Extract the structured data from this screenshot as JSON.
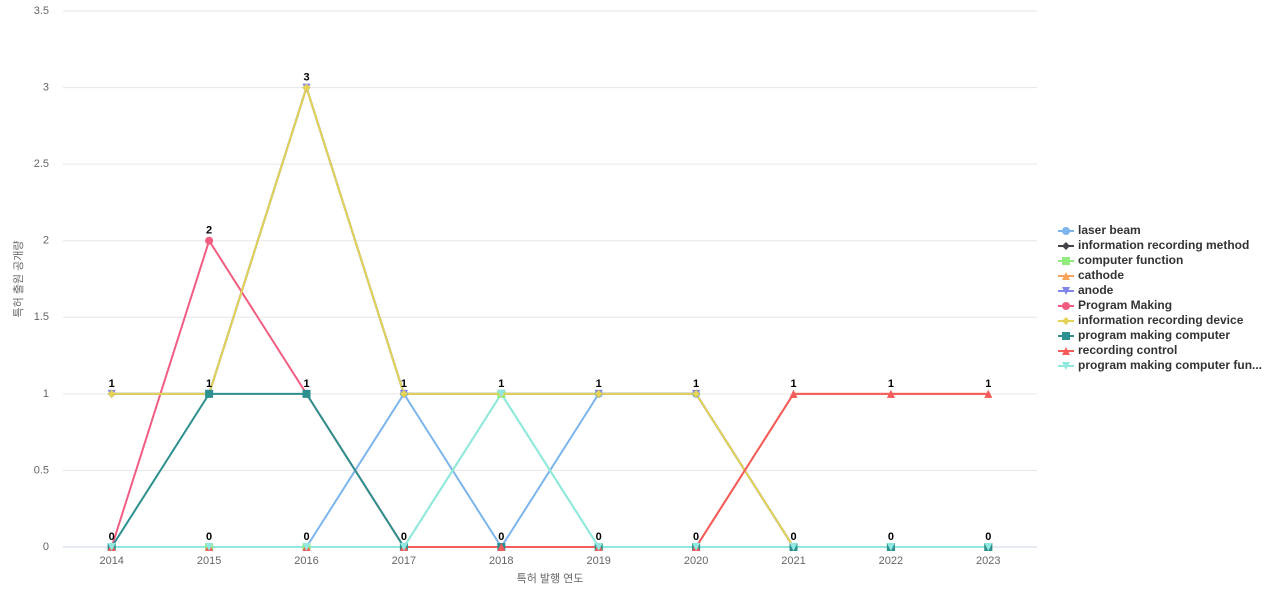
{
  "chart_data": {
    "type": "line",
    "x_label": "특허 발행 연도",
    "y_label": "특허 출원 공개량",
    "categories": [
      "2014",
      "2015",
      "2016",
      "2017",
      "2018",
      "2019",
      "2020",
      "2021",
      "2022",
      "2023"
    ],
    "ylim": [
      0,
      3.5
    ],
    "yticks": [
      0,
      0.5,
      1,
      1.5,
      2,
      2.5,
      3,
      3.5
    ],
    "grid": true,
    "legend": "right",
    "series": [
      {
        "name": "laser beam",
        "color": "#7cb5ec",
        "values": [
          0,
          0,
          0,
          1,
          0,
          1,
          1,
          0,
          0,
          0
        ]
      },
      {
        "name": "information recording method",
        "color": "#434348",
        "values": [
          1,
          1,
          3,
          1,
          1,
          1,
          1,
          0,
          0,
          0
        ]
      },
      {
        "name": "computer function",
        "color": "#90ed7d",
        "values": [
          0,
          0,
          0,
          0,
          1,
          0,
          0,
          0,
          0,
          0
        ]
      },
      {
        "name": "cathode",
        "color": "#f7a35c",
        "values": [
          0,
          0,
          0,
          0,
          0,
          0,
          0,
          1,
          1,
          1
        ]
      },
      {
        "name": "anode",
        "color": "#8085e9",
        "values": [
          1,
          1,
          3,
          1,
          1,
          1,
          1,
          0,
          0,
          0
        ]
      },
      {
        "name": "Program Making",
        "color": "#f15c80",
        "values": [
          0,
          2,
          1,
          0,
          0,
          0,
          0,
          0,
          0,
          0
        ]
      },
      {
        "name": "information recording device",
        "color": "#e4d354",
        "values": [
          1,
          1,
          3,
          1,
          1,
          1,
          1,
          0,
          0,
          0
        ]
      },
      {
        "name": "program making computer",
        "color": "#2b908f",
        "values": [
          0,
          1,
          1,
          0,
          0,
          0,
          0,
          0,
          0,
          0
        ]
      },
      {
        "name": "recording control",
        "color": "#f45b5b",
        "values": [
          0,
          0,
          0,
          0,
          0,
          0,
          0,
          1,
          1,
          1
        ]
      },
      {
        "name": "program making computer fun...",
        "color": "#91e8e1",
        "values": [
          0,
          0,
          0,
          0,
          1,
          0,
          0,
          0,
          0,
          0
        ]
      }
    ]
  }
}
